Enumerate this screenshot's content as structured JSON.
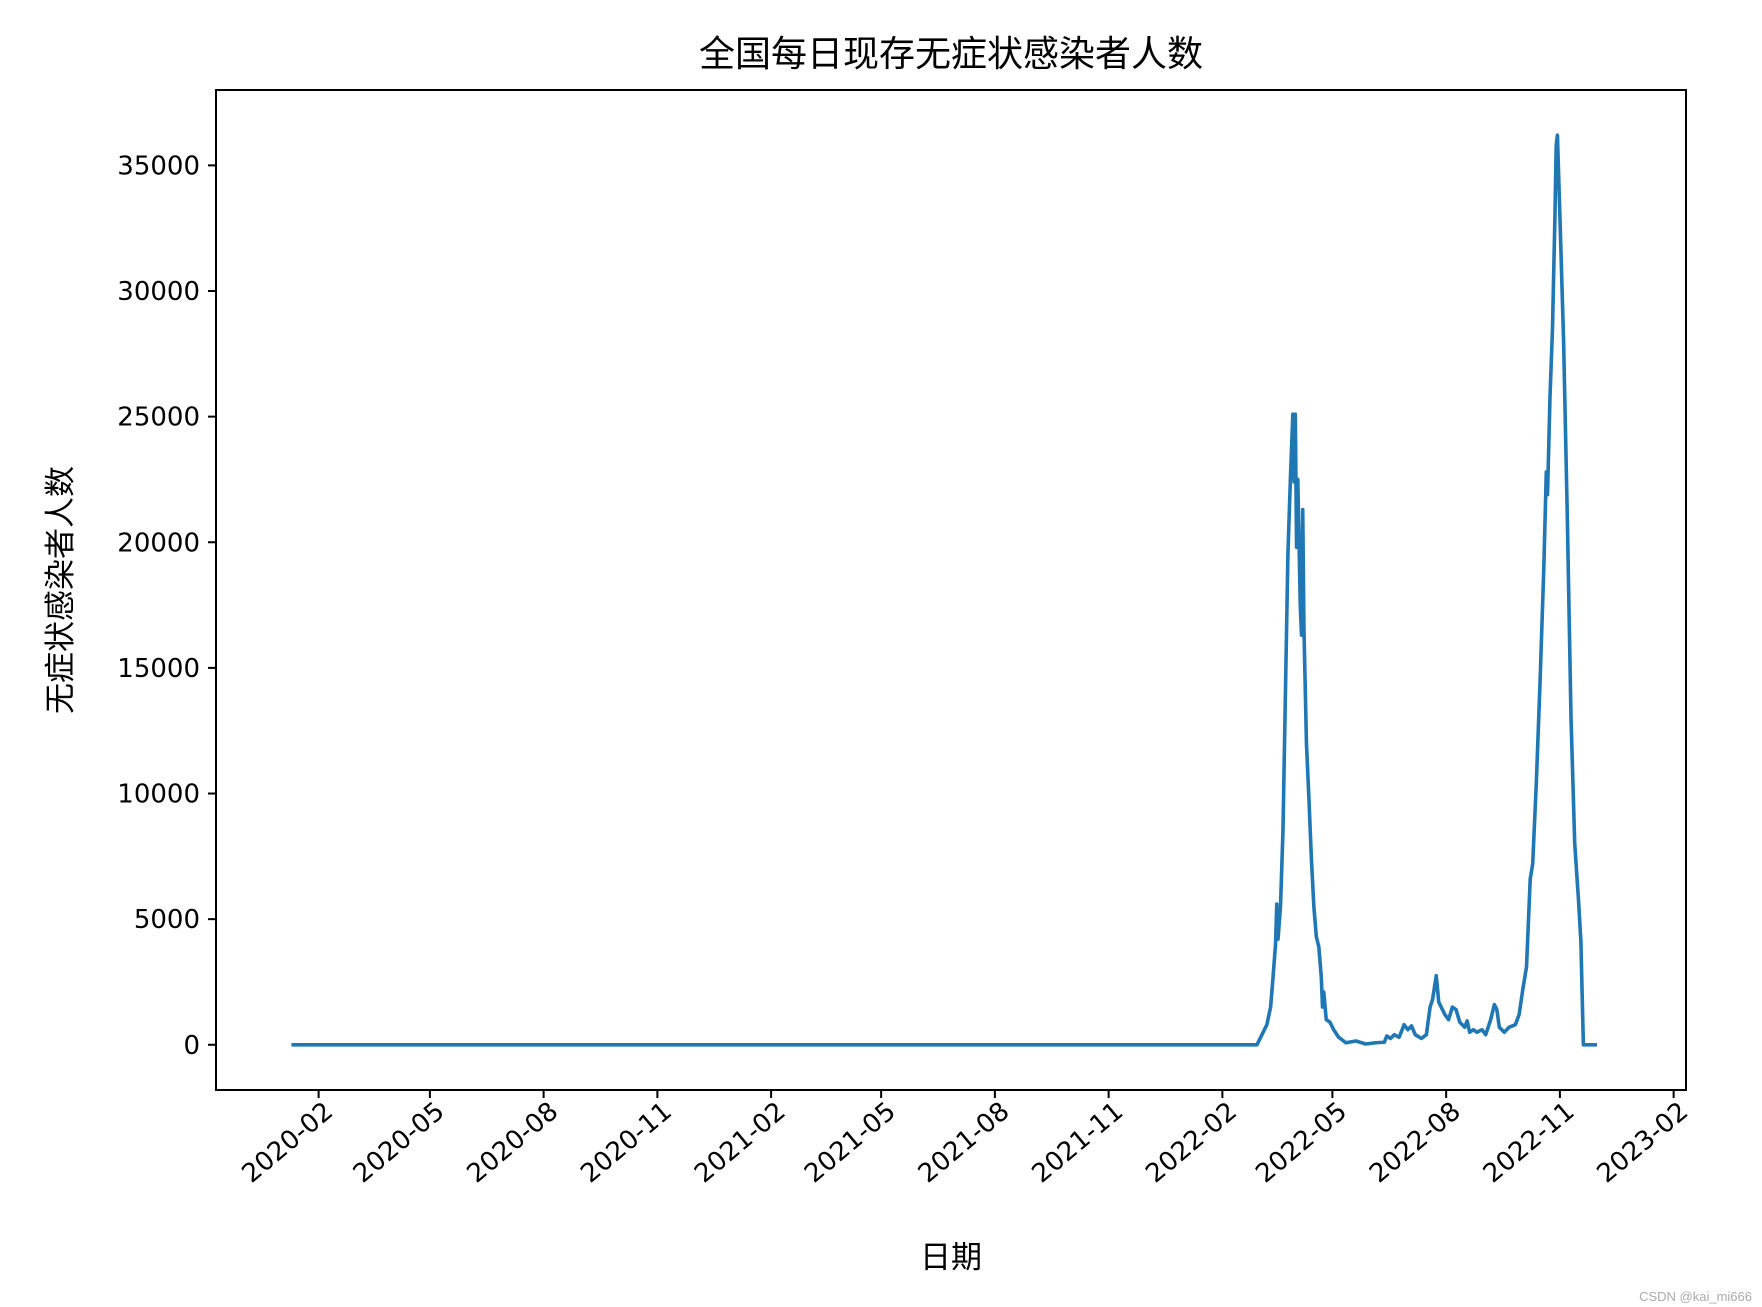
{
  "chart_data": {
    "type": "line",
    "title": "全国每日现存无症状感染者人数",
    "xlabel": "日期",
    "ylabel": "无症状感染者人数",
    "x_tick_labels": [
      "2020-02",
      "2020-05",
      "2020-08",
      "2020-11",
      "2021-02",
      "2021-05",
      "2021-08",
      "2021-11",
      "2022-02",
      "2022-05",
      "2022-08",
      "2022-11",
      "2023-02"
    ],
    "y_ticks": [
      0,
      5000,
      10000,
      15000,
      20000,
      25000,
      30000,
      35000
    ],
    "xlim": [
      "2019-11-10",
      "2023-02-11"
    ],
    "ylim": [
      -1800,
      38000
    ],
    "line_color": "#1f77b4",
    "series": [
      {
        "points": [
          [
            "2020-01-10",
            0
          ],
          [
            "2021-06-01",
            0
          ],
          [
            "2022-01-01",
            0
          ],
          [
            "2022-03-01",
            0
          ],
          [
            "2022-03-05",
            400
          ],
          [
            "2022-03-09",
            800
          ],
          [
            "2022-03-12",
            1500
          ],
          [
            "2022-03-14",
            2700
          ],
          [
            "2022-03-16",
            4000
          ],
          [
            "2022-03-17",
            5600
          ],
          [
            "2022-03-18",
            4200
          ],
          [
            "2022-03-20",
            5500
          ],
          [
            "2022-03-22",
            8500
          ],
          [
            "2022-03-24",
            14000
          ],
          [
            "2022-03-26",
            19500
          ],
          [
            "2022-03-28",
            22500
          ],
          [
            "2022-03-30",
            25100
          ],
          [
            "2022-03-31",
            22400
          ],
          [
            "2022-04-01",
            25100
          ],
          [
            "2022-04-02",
            19800
          ],
          [
            "2022-04-03",
            22500
          ],
          [
            "2022-04-05",
            17500
          ],
          [
            "2022-04-06",
            16300
          ],
          [
            "2022-04-07",
            21300
          ],
          [
            "2022-04-08",
            16500
          ],
          [
            "2022-04-10",
            12000
          ],
          [
            "2022-04-12",
            9800
          ],
          [
            "2022-04-14",
            7400
          ],
          [
            "2022-04-16",
            5500
          ],
          [
            "2022-04-18",
            4300
          ],
          [
            "2022-04-20",
            3900
          ],
          [
            "2022-04-22",
            2700
          ],
          [
            "2022-04-23",
            1500
          ],
          [
            "2022-04-24",
            2100
          ],
          [
            "2022-04-26",
            1000
          ],
          [
            "2022-04-29",
            900
          ],
          [
            "2022-05-02",
            600
          ],
          [
            "2022-05-06",
            300
          ],
          [
            "2022-05-12",
            80
          ],
          [
            "2022-05-20",
            150
          ],
          [
            "2022-05-28",
            30
          ],
          [
            "2022-06-05",
            80
          ],
          [
            "2022-06-12",
            100
          ],
          [
            "2022-06-14",
            350
          ],
          [
            "2022-06-17",
            250
          ],
          [
            "2022-06-20",
            400
          ],
          [
            "2022-06-24",
            300
          ],
          [
            "2022-06-28",
            800
          ],
          [
            "2022-07-01",
            600
          ],
          [
            "2022-07-04",
            750
          ],
          [
            "2022-07-07",
            400
          ],
          [
            "2022-07-12",
            250
          ],
          [
            "2022-07-16",
            400
          ],
          [
            "2022-07-19",
            1500
          ],
          [
            "2022-07-21",
            1800
          ],
          [
            "2022-07-24",
            2750
          ],
          [
            "2022-07-26",
            1700
          ],
          [
            "2022-07-28",
            1500
          ],
          [
            "2022-07-31",
            1200
          ],
          [
            "2022-08-03",
            1000
          ],
          [
            "2022-08-06",
            1500
          ],
          [
            "2022-08-09",
            1400
          ],
          [
            "2022-08-12",
            900
          ],
          [
            "2022-08-16",
            700
          ],
          [
            "2022-08-18",
            950
          ],
          [
            "2022-08-20",
            500
          ],
          [
            "2022-08-23",
            600
          ],
          [
            "2022-08-26",
            500
          ],
          [
            "2022-08-30",
            600
          ],
          [
            "2022-09-02",
            400
          ],
          [
            "2022-09-06",
            1000
          ],
          [
            "2022-09-09",
            1600
          ],
          [
            "2022-09-11",
            1400
          ],
          [
            "2022-09-13",
            700
          ],
          [
            "2022-09-17",
            500
          ],
          [
            "2022-09-21",
            700
          ],
          [
            "2022-09-26",
            800
          ],
          [
            "2022-09-29",
            1200
          ],
          [
            "2022-10-02",
            2200
          ],
          [
            "2022-10-05",
            3100
          ],
          [
            "2022-10-08",
            6600
          ],
          [
            "2022-10-10",
            7200
          ],
          [
            "2022-10-13",
            10500
          ],
          [
            "2022-10-16",
            14500
          ],
          [
            "2022-10-19",
            19000
          ],
          [
            "2022-10-21",
            22800
          ],
          [
            "2022-10-22",
            21900
          ],
          [
            "2022-10-24",
            25800
          ],
          [
            "2022-10-26",
            28500
          ],
          [
            "2022-10-28",
            33000
          ],
          [
            "2022-10-29",
            35800
          ],
          [
            "2022-10-30",
            36200
          ],
          [
            "2022-11-01",
            33000
          ],
          [
            "2022-11-04",
            28000
          ],
          [
            "2022-11-07",
            21000
          ],
          [
            "2022-11-10",
            13000
          ],
          [
            "2022-11-13",
            8000
          ],
          [
            "2022-11-16",
            5800
          ],
          [
            "2022-11-18",
            4100
          ],
          [
            "2022-11-19",
            2000
          ],
          [
            "2022-11-20",
            0
          ],
          [
            "2022-12-01",
            0
          ]
        ]
      }
    ]
  },
  "watermark": "CSDN @kai_mi666"
}
